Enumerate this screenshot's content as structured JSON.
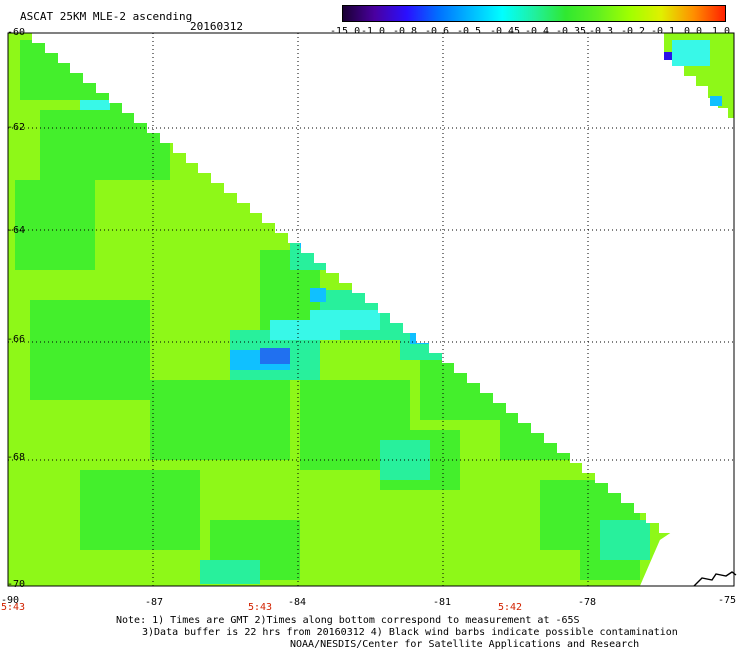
{
  "header": {
    "title": "ASCAT 25KM MLE-2 ascending",
    "date": "20160312"
  },
  "colorbar": {
    "labels": [
      "-15.0",
      "-1.0",
      "-0.8",
      "-0.6",
      "-0.5",
      "-0.45",
      "-0.4",
      "-0.35",
      "-0.3",
      "-0.2",
      "-0.1",
      "0.0",
      "1.0"
    ],
    "colors": [
      "#1a0033",
      "#4a00a0",
      "#2a10ff",
      "#0070ff",
      "#00b8ff",
      "#00ffff",
      "#20f0a0",
      "#30e830",
      "#60f020",
      "#a0ff00",
      "#e0f000",
      "#ff9000",
      "#ff2000"
    ]
  },
  "axes": {
    "y_labels": [
      "-60",
      "-62",
      "-64",
      "-66",
      "-68",
      "-70"
    ],
    "x_labels": [
      "-90",
      "-87",
      "-84",
      "-81",
      "-78",
      "-75"
    ]
  },
  "time_labels": [
    "5:43",
    "5:43",
    "5:42"
  ],
  "notes": [
    "Note: 1) Times are GMT 2)Times along bottom correspond to measurement at -65S",
    "3)Data buffer is 22 hrs from 20160312 4) Black wind barbs indicate possible contamination",
    "NOAA/NESDIS/Center for Satellite Applications and Research"
  ],
  "palette": {
    "base": "#8ef818",
    "field": "#44ef2c",
    "aqua": "#28f09c",
    "cyan": "#38f8e8",
    "sky": "#10c0ff",
    "blue": "#2070f0",
    "indigo": "#2a14e8",
    "coast": "#000000"
  }
}
